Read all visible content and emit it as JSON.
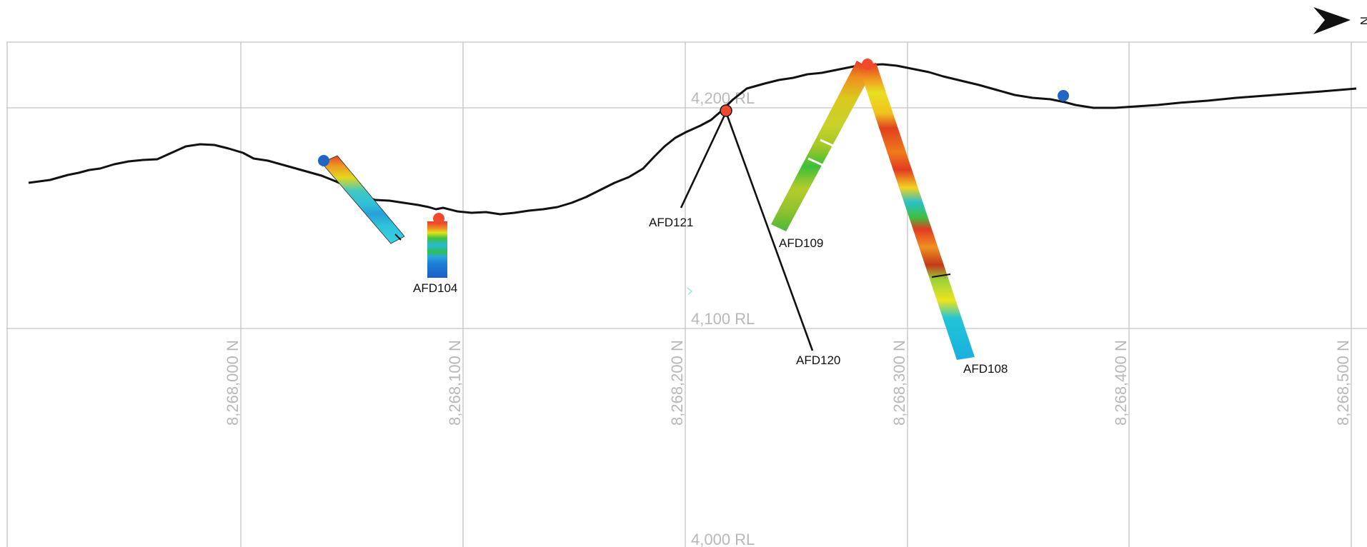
{
  "section": {
    "north_arrow": {
      "label": "N"
    },
    "elevation_labels": [
      "4,200 RL",
      "4,100 RL",
      "4,000 RL"
    ],
    "northing_labels": [
      "8,268,000 N",
      "8,268,100 N",
      "8,268,200 N",
      "8,268,300 N",
      "8,268,400 N",
      "8,268,500 N"
    ],
    "drillholes": [
      {
        "id": "AFD104",
        "label": "AFD104",
        "display": "logged"
      },
      {
        "id": "AFD108",
        "label": "AFD108",
        "display": "logged"
      },
      {
        "id": "AFD109",
        "label": "AFD109",
        "display": "logged"
      },
      {
        "id": "AFD120",
        "label": "AFD120",
        "display": "trace"
      },
      {
        "id": "AFD121",
        "label": "AFD121",
        "display": "trace"
      }
    ],
    "colors": {
      "collar_drilled": "#ef4a2e",
      "collar_planned": "#2166c4",
      "topography": "#111111",
      "grid": "#c4c4c4"
    }
  }
}
